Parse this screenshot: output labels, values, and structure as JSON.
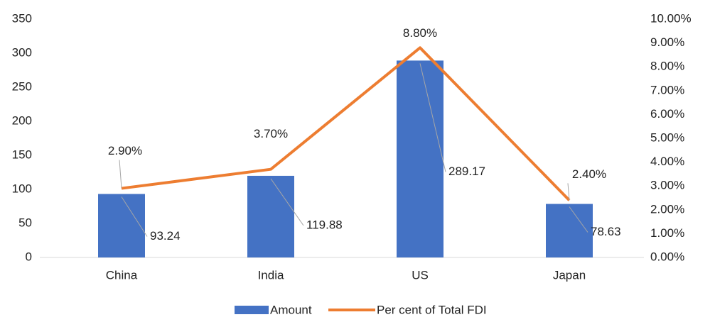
{
  "chart_data": {
    "type": "bar-line",
    "categories": [
      "China",
      "India",
      "US",
      "Japan"
    ],
    "series": [
      {
        "name": "Amount",
        "type": "bar",
        "color": "#4472c4",
        "values": [
          93.24,
          119.88,
          289.17,
          78.63
        ]
      },
      {
        "name": "Per cent of Total FDI",
        "type": "line",
        "axis": "y2",
        "color": "#ed7d31",
        "values": [
          2.9,
          3.7,
          8.8,
          2.4
        ],
        "value_labels": [
          "2.90%",
          "3.70%",
          "8.80%",
          "2.40%"
        ]
      }
    ],
    "ylim": [
      0,
      350
    ],
    "yticks": [
      0,
      50,
      100,
      150,
      200,
      250,
      300,
      350
    ],
    "y2lim": [
      0,
      10
    ],
    "y2ticks": [
      {
        "value": 0,
        "label": "0.00%"
      },
      {
        "value": 1,
        "label": "1.00%"
      },
      {
        "value": 2,
        "label": "2.00%"
      },
      {
        "value": 3,
        "label": "3.00%"
      },
      {
        "value": 4,
        "label": "4.00%"
      },
      {
        "value": 5,
        "label": "5.00%"
      },
      {
        "value": 6,
        "label": "6.00%"
      },
      {
        "value": 7,
        "label": "7.00%"
      },
      {
        "value": 8,
        "label": "8.00%"
      },
      {
        "value": 9,
        "label": "9.00%"
      },
      {
        "value": 10,
        "label": "10.00%"
      }
    ],
    "grid": false,
    "legend": "bottom"
  }
}
